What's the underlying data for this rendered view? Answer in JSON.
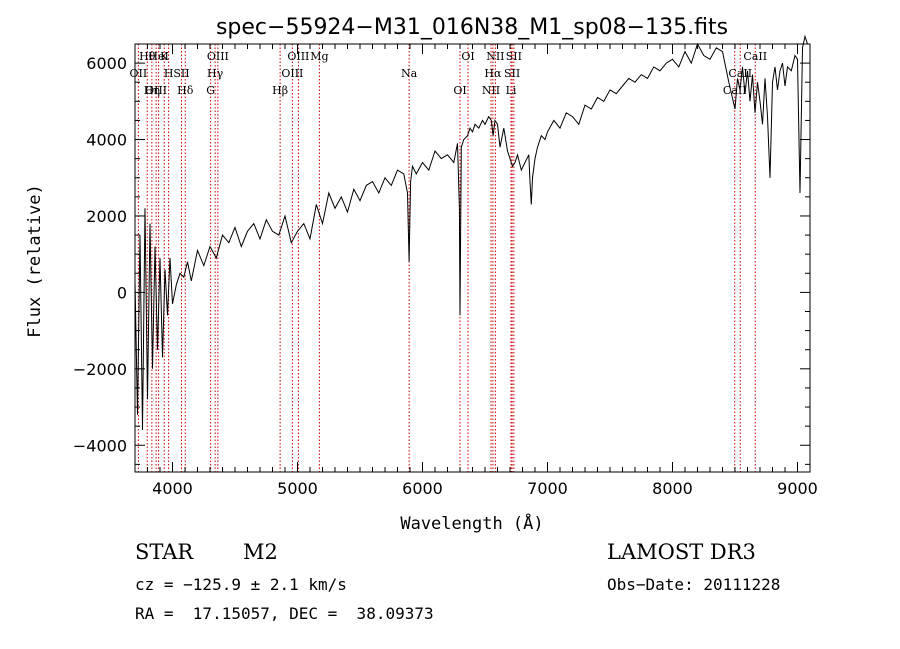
{
  "chart_data": {
    "type": "line",
    "title": "spec−55924−M31_016N38_M1_sp08−135.fits",
    "xlabel": "Wavelength (Å)",
    "ylabel": "Flux (relative)",
    "xlim": [
      3700,
      9100
    ],
    "ylim": [
      -4700,
      6500
    ],
    "x_ticks": [
      4000,
      5000,
      6000,
      7000,
      8000,
      9000
    ],
    "y_ticks": [
      -4000,
      -2000,
      0,
      2000,
      4000,
      6000
    ],
    "y_tick_labels": [
      "−4000",
      "−2000",
      "0",
      "2000",
      "4000",
      "6000"
    ],
    "series": [
      {
        "name": "spectrum",
        "x": [
          3700,
          3720,
          3740,
          3760,
          3780,
          3800,
          3820,
          3840,
          3860,
          3880,
          3900,
          3920,
          3940,
          3960,
          3980,
          4000,
          4030,
          4060,
          4090,
          4120,
          4150,
          4200,
          4250,
          4300,
          4350,
          4400,
          4450,
          4500,
          4550,
          4600,
          4650,
          4700,
          4750,
          4800,
          4850,
          4900,
          4950,
          5000,
          5050,
          5100,
          5150,
          5200,
          5250,
          5300,
          5350,
          5400,
          5450,
          5500,
          5550,
          5600,
          5650,
          5700,
          5750,
          5800,
          5850,
          5880,
          5893,
          5905,
          5920,
          5950,
          6000,
          6050,
          6100,
          6150,
          6200,
          6250,
          6280,
          6295,
          6300,
          6310,
          6330,
          6360,
          6380,
          6400,
          6420,
          6450,
          6480,
          6500,
          6530,
          6550,
          6565,
          6580,
          6600,
          6620,
          6650,
          6680,
          6700,
          6720,
          6740,
          6760,
          6790,
          6820,
          6850,
          6860,
          6870,
          6880,
          6900,
          6920,
          6950,
          6980,
          7000,
          7050,
          7100,
          7150,
          7200,
          7250,
          7300,
          7350,
          7400,
          7450,
          7500,
          7550,
          7600,
          7650,
          7700,
          7750,
          7800,
          7850,
          7900,
          7950,
          8000,
          8050,
          8100,
          8150,
          8200,
          8250,
          8300,
          8350,
          8400,
          8450,
          8500,
          8520,
          8540,
          8560,
          8580,
          8600,
          8620,
          8640,
          8660,
          8680,
          8700,
          8720,
          8740,
          8760,
          8780,
          8800,
          8820,
          8840,
          8860,
          8880,
          8900,
          8920,
          8950,
          8980,
          9000,
          9020,
          9040,
          9060,
          9080
        ],
        "y": [
          300,
          -3200,
          1500,
          -3600,
          2200,
          -2800,
          1800,
          -2000,
          1200,
          -1500,
          900,
          -1700,
          600,
          -600,
          900,
          -300,
          200,
          500,
          400,
          800,
          300,
          1100,
          700,
          1200,
          900,
          1500,
          1300,
          1700,
          1200,
          1600,
          1800,
          1400,
          1900,
          1600,
          1500,
          2000,
          1300,
          1600,
          1800,
          1400,
          2300,
          1800,
          2600,
          2200,
          2500,
          2100,
          2700,
          2400,
          2800,
          2900,
          2600,
          3000,
          2800,
          3200,
          3100,
          2600,
          800,
          2900,
          3300,
          3100,
          3400,
          3200,
          3700,
          3500,
          3600,
          3400,
          3900,
          2200,
          -600,
          3800,
          4000,
          4100,
          4300,
          4200,
          4400,
          4300,
          4500,
          4400,
          4600,
          4500,
          4100,
          4500,
          4400,
          3800,
          4300,
          3700,
          3500,
          3300,
          3400,
          3600,
          3200,
          3400,
          3600,
          2900,
          2300,
          3000,
          3500,
          3800,
          4100,
          4000,
          4200,
          4500,
          4300,
          4700,
          4600,
          4400,
          4900,
          4800,
          5100,
          5000,
          5300,
          5200,
          5400,
          5600,
          5500,
          5700,
          5600,
          5900,
          5800,
          6000,
          6100,
          5900,
          6300,
          6000,
          6500,
          6200,
          6100,
          6400,
          6300,
          5500,
          4800,
          5600,
          5300,
          5900,
          5200,
          5800,
          5000,
          5700,
          4700,
          5500,
          5000,
          4400,
          5600,
          4600,
          3000,
          5500,
          5900,
          5300,
          5800,
          6000,
          5400,
          5900,
          5800,
          6200,
          6100,
          2600,
          6400,
          6700,
          6500
        ]
      }
    ],
    "lines": [
      {
        "name": "Hθ",
        "x": 3798
      },
      {
        "name": "OII",
        "x": 3727
      },
      {
        "name": "OIII",
        "x": 3869
      },
      {
        "name": "K",
        "x": 3934
      },
      {
        "name": "H",
        "x": 3969
      },
      {
        "name": "Hη",
        "x": 3835
      },
      {
        "name": "HeI",
        "x": 3889
      },
      {
        "name": "SII",
        "x": 4072
      },
      {
        "name": "Hδ",
        "x": 4102
      },
      {
        "name": "OIII",
        "x": 4363
      },
      {
        "name": "Hγ",
        "x": 4341
      },
      {
        "name": "G",
        "x": 4305
      },
      {
        "name": "OIII",
        "x": 5007
      },
      {
        "name": "OIII",
        "x": 4959
      },
      {
        "name": "Hβ",
        "x": 4861
      },
      {
        "name": "Mg",
        "x": 5175
      },
      {
        "name": "Na",
        "x": 5893
      },
      {
        "name": "OI",
        "x": 6300
      },
      {
        "name": "OI",
        "x": 6364
      },
      {
        "name": "Hα",
        "x": 6563
      },
      {
        "name": "NII",
        "x": 6548
      },
      {
        "name": "NII",
        "x": 6583
      },
      {
        "name": "SII",
        "x": 6717
      },
      {
        "name": "Li",
        "x": 6708
      },
      {
        "name": "SII",
        "x": 6731
      },
      {
        "name": "CaII",
        "x": 8542
      },
      {
        "name": "CaII",
        "x": 8498
      },
      {
        "name": "CaII",
        "x": 8662
      }
    ],
    "grid": false,
    "legend": "none"
  },
  "info": {
    "class_label": "STAR",
    "subclass_label": "M2",
    "survey_label": "LAMOST DR3",
    "cz_text": "cz = −125.9 ± 2.1 km/s",
    "obs_date_text": "Obs−Date: 20111228",
    "coords_text": "RA =  17.15057, DEC =  38.09373"
  },
  "colors": {
    "line_marker": "#cc0000",
    "spectrum": "#000000"
  }
}
